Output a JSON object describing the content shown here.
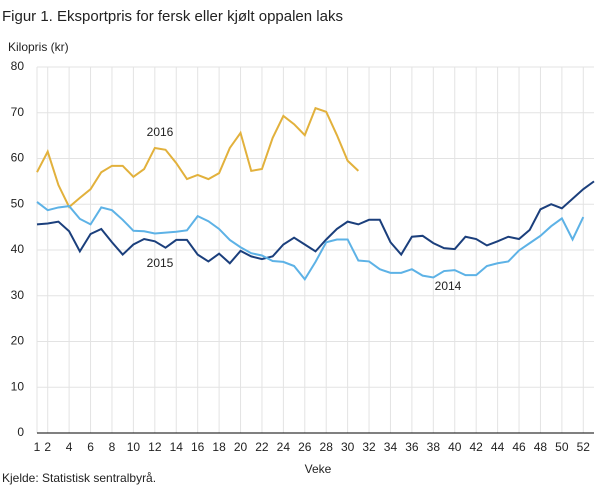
{
  "chart_data": {
    "type": "line",
    "title": "Figur 1. Eksportpris for fersk eller kjølt oppalen laks",
    "y_label": "Kilopris  (kr)",
    "x_label": "Veke",
    "source": "Kjelde: Statistisk sentralbyrå.",
    "x": [
      1,
      2,
      3,
      4,
      5,
      6,
      7,
      8,
      9,
      10,
      11,
      12,
      13,
      14,
      15,
      16,
      17,
      18,
      19,
      20,
      21,
      22,
      23,
      24,
      25,
      26,
      27,
      28,
      29,
      30,
      31,
      32,
      33,
      34,
      35,
      36,
      37,
      38,
      39,
      40,
      41,
      42,
      43,
      44,
      45,
      46,
      47,
      48,
      49,
      50,
      51,
      52,
      53
    ],
    "xlim": [
      1,
      53
    ],
    "xticks": [
      1,
      2,
      4,
      6,
      8,
      10,
      12,
      14,
      16,
      18,
      20,
      22,
      24,
      26,
      28,
      30,
      32,
      34,
      36,
      38,
      40,
      42,
      44,
      46,
      48,
      50,
      52
    ],
    "ylim": [
      0,
      80
    ],
    "yticks": [
      0,
      10,
      20,
      30,
      40,
      50,
      60,
      70,
      80
    ],
    "grid": true,
    "series": [
      {
        "name": "2016",
        "color": "#e2b13c",
        "values": [
          57,
          61.5,
          54.2,
          49.4,
          51.4,
          53.3,
          57,
          58.4,
          58.4,
          56,
          57.7,
          62.3,
          61.9,
          59,
          55.5,
          56.4,
          55.5,
          56.8,
          62.3,
          65.6,
          57.3,
          57.7,
          64.5,
          69.3,
          67.5,
          65.1,
          71,
          70.2,
          65.1,
          59.5,
          57.3,
          null,
          null,
          null,
          null,
          null,
          null,
          null,
          null,
          null,
          null,
          null,
          null,
          null,
          null,
          null,
          null,
          null,
          null,
          null,
          null,
          null,
          null
        ]
      },
      {
        "name": "2015",
        "color": "#1b3f7c",
        "values": [
          45.6,
          45.8,
          46.2,
          44.1,
          39.7,
          43.5,
          44.6,
          41.7,
          39,
          41.2,
          42.4,
          41.9,
          40.5,
          42.2,
          42.2,
          39,
          37.5,
          39.2,
          37.1,
          39.8,
          38.6,
          38,
          38.6,
          41.2,
          42.7,
          41.2,
          39.7,
          42.3,
          44.6,
          46.2,
          45.6,
          46.6,
          46.6,
          41.7,
          39,
          42.9,
          43.1,
          41.5,
          40.4,
          40.2,
          42.9,
          42.4,
          41,
          41.9,
          42.9,
          42.4,
          44.4,
          48.9,
          50,
          49.1,
          51.2,
          53.3,
          55
        ]
      },
      {
        "name": "2014",
        "color": "#5db2e6",
        "values": [
          50.5,
          48.7,
          49.3,
          49.6,
          46.8,
          45.6,
          49.3,
          48.7,
          46.6,
          44.2,
          44.1,
          43.6,
          43.8,
          44,
          44.3,
          47.4,
          46.3,
          44.6,
          42.2,
          40.6,
          39.3,
          38.8,
          37.6,
          37.4,
          36.5,
          33.6,
          37.4,
          41.7,
          42.3,
          42.3,
          37.7,
          37.5,
          35.8,
          35,
          35,
          35.8,
          34.4,
          34,
          35.4,
          35.6,
          34.5,
          34.5,
          36.5,
          37.1,
          37.5,
          39.9,
          41.5,
          43.1,
          45.2,
          46.9,
          42.3,
          47.2,
          null
        ]
      }
    ]
  }
}
